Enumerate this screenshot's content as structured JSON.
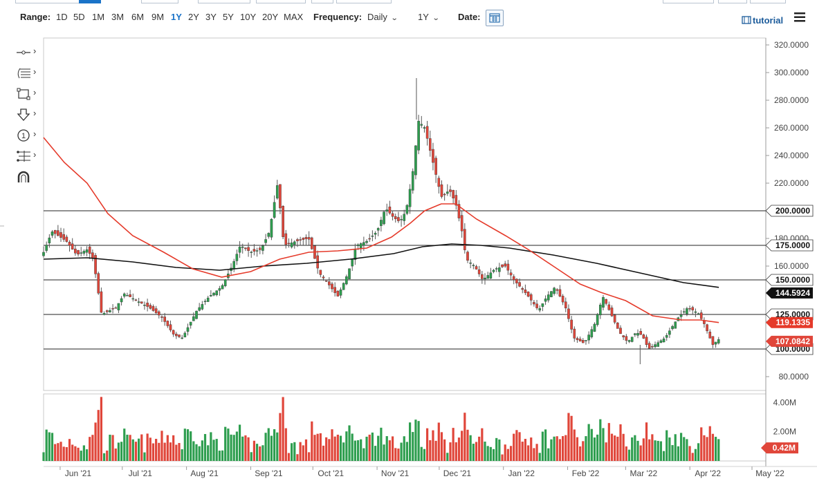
{
  "toolbar": {
    "range_label": "Range:",
    "ranges": [
      "1D",
      "5D",
      "1M",
      "3M",
      "6M",
      "9M",
      "1Y",
      "2Y",
      "3Y",
      "5Y",
      "10Y",
      "20Y",
      "MAX"
    ],
    "active_range": "1Y",
    "frequency_label": "Frequency:",
    "frequency_value": "Daily",
    "period_value": "1Y",
    "date_label": "Date:",
    "tutorial_label": "tutorial"
  },
  "colors": {
    "up": "#2e9e4f",
    "down": "#e0463a",
    "ma_fast": "#e53a2a",
    "ma_slow": "#111111",
    "hline": "#222222",
    "axis_active": "#1a73c8"
  },
  "icons": [
    "line-tool-icon",
    "fib-tool-icon",
    "rectangle-tool-icon",
    "arrow-tool-icon",
    "annotation-tool-icon",
    "measure-tool-icon",
    "magnet-icon",
    "calendar-icon",
    "film-icon",
    "hamburger-menu-icon"
  ],
  "chart_data": {
    "type": "candlestick",
    "x_ticks": [
      "Jun '21",
      "Jul '21",
      "Aug '21",
      "Sep '21",
      "Oct '21",
      "Nov '21",
      "Dec '21",
      "Jan '22",
      "Feb '22",
      "Mar '22",
      "Apr '22",
      "May '22"
    ],
    "y_ticks": [
      "80.0000",
      "100.0000",
      "120.0000",
      "140.0000",
      "160.0000",
      "180.0000",
      "200.0000",
      "220.0000",
      "240.0000",
      "260.0000",
      "280.0000",
      "300.0000",
      "320.0000"
    ],
    "ylim": [
      80,
      320
    ],
    "volume_ticks": [
      "4.00M",
      "2.00M"
    ],
    "volume_ylim": [
      0,
      4.4
    ],
    "horizontal_lines": [
      {
        "value": 200,
        "label": "200.0000"
      },
      {
        "value": 175,
        "label": "175.0000"
      },
      {
        "value": 150,
        "label": "150.0000"
      },
      {
        "value": 125,
        "label": "125.0000"
      },
      {
        "value": 100,
        "label": "100.0000"
      }
    ],
    "price_tags": [
      {
        "value": 144.5924,
        "label": "144.5924",
        "series": "ma_slow"
      },
      {
        "value": 119.1335,
        "label": "119.1335",
        "series": "ma_fast"
      },
      {
        "value": 107.0842,
        "label": "107.0842",
        "series": "last_price"
      },
      {
        "value": 0.42,
        "label": "0.42M",
        "series": "volume"
      }
    ],
    "close_path": [
      [
        "2021-05-24",
        170
      ],
      [
        "2021-05-28",
        185
      ],
      [
        "2021-06-04",
        178
      ],
      [
        "2021-06-09",
        168
      ],
      [
        "2021-06-14",
        172
      ],
      [
        "2021-06-17",
        165
      ],
      [
        "2021-06-21",
        125
      ],
      [
        "2021-06-28",
        130
      ],
      [
        "2021-07-02",
        140
      ],
      [
        "2021-07-08",
        135
      ],
      [
        "2021-07-14",
        130
      ],
      [
        "2021-07-20",
        123
      ],
      [
        "2021-07-26",
        110
      ],
      [
        "2021-07-30",
        108
      ],
      [
        "2021-08-06",
        128
      ],
      [
        "2021-08-12",
        138
      ],
      [
        "2021-08-18",
        145
      ],
      [
        "2021-08-23",
        160
      ],
      [
        "2021-08-27",
        175
      ],
      [
        "2021-09-01",
        170
      ],
      [
        "2021-09-06",
        172
      ],
      [
        "2021-09-10",
        185
      ],
      [
        "2021-09-14",
        220
      ],
      [
        "2021-09-17",
        175
      ],
      [
        "2021-09-23",
        178
      ],
      [
        "2021-09-29",
        180
      ],
      [
        "2021-10-04",
        155
      ],
      [
        "2021-10-08",
        148
      ],
      [
        "2021-10-13",
        138
      ],
      [
        "2021-10-18",
        155
      ],
      [
        "2021-10-22",
        175
      ],
      [
        "2021-10-27",
        178
      ],
      [
        "2021-11-01",
        185
      ],
      [
        "2021-11-05",
        202
      ],
      [
        "2021-11-09",
        195
      ],
      [
        "2021-11-12",
        192
      ],
      [
        "2021-11-15",
        200
      ],
      [
        "2021-11-18",
        225
      ],
      [
        "2021-11-21",
        265
      ],
      [
        "2021-11-24",
        260
      ],
      [
        "2021-11-28",
        235
      ],
      [
        "2021-12-02",
        210
      ],
      [
        "2021-12-06",
        215
      ],
      [
        "2021-12-09",
        205
      ],
      [
        "2021-12-12",
        185
      ],
      [
        "2021-12-14",
        165
      ],
      [
        "2021-12-18",
        160
      ],
      [
        "2021-12-22",
        150
      ],
      [
        "2021-12-28",
        158
      ],
      [
        "2022-01-02",
        160
      ],
      [
        "2022-01-06",
        150
      ],
      [
        "2022-01-12",
        140
      ],
      [
        "2022-01-18",
        128
      ],
      [
        "2022-01-22",
        138
      ],
      [
        "2022-01-26",
        145
      ],
      [
        "2022-01-31",
        130
      ],
      [
        "2022-02-04",
        108
      ],
      [
        "2022-02-09",
        104
      ],
      [
        "2022-02-14",
        118
      ],
      [
        "2022-02-18",
        138
      ],
      [
        "2022-02-22",
        125
      ],
      [
        "2022-02-26",
        112
      ],
      [
        "2022-03-02",
        105
      ],
      [
        "2022-03-06",
        112
      ],
      [
        "2022-03-09",
        110
      ],
      [
        "2022-03-12",
        100
      ],
      [
        "2022-03-16",
        104
      ],
      [
        "2022-03-20",
        108
      ],
      [
        "2022-03-26",
        122
      ],
      [
        "2022-03-31",
        130
      ],
      [
        "2022-04-05",
        126
      ],
      [
        "2022-04-08",
        118
      ],
      [
        "2022-04-12",
        103
      ],
      [
        "2022-04-15",
        107.08
      ]
    ],
    "ma_fast_path": [
      [
        "2021-05-24",
        253
      ],
      [
        "2021-06-03",
        235
      ],
      [
        "2021-06-14",
        220
      ],
      [
        "2021-06-24",
        198
      ],
      [
        "2021-07-06",
        182
      ],
      [
        "2021-07-21",
        170
      ],
      [
        "2021-08-04",
        158
      ],
      [
        "2021-08-18",
        152
      ],
      [
        "2021-09-01",
        156
      ],
      [
        "2021-09-15",
        165
      ],
      [
        "2021-09-29",
        170
      ],
      [
        "2021-10-13",
        171
      ],
      [
        "2021-10-27",
        173
      ],
      [
        "2021-11-08",
        181
      ],
      [
        "2021-11-17",
        191
      ],
      [
        "2021-11-24",
        200
      ],
      [
        "2021-12-02",
        205
      ],
      [
        "2021-12-09",
        205
      ],
      [
        "2021-12-19",
        194
      ],
      [
        "2022-01-02",
        182
      ],
      [
        "2022-01-13",
        172
      ],
      [
        "2022-01-25",
        160
      ],
      [
        "2022-02-07",
        147
      ],
      [
        "2022-02-17",
        141
      ],
      [
        "2022-03-01",
        135
      ],
      [
        "2022-03-14",
        124
      ],
      [
        "2022-03-28",
        121
      ],
      [
        "2022-04-06",
        121
      ],
      [
        "2022-04-15",
        119.13
      ]
    ],
    "ma_slow_path": [
      [
        "2021-05-24",
        165
      ],
      [
        "2021-06-14",
        166
      ],
      [
        "2021-07-06",
        163
      ],
      [
        "2021-07-27",
        159
      ],
      [
        "2021-08-17",
        157
      ],
      [
        "2021-09-07",
        160
      ],
      [
        "2021-09-28",
        162
      ],
      [
        "2021-10-19",
        165
      ],
      [
        "2021-11-09",
        169
      ],
      [
        "2021-11-23",
        174
      ],
      [
        "2021-12-07",
        176
      ],
      [
        "2021-12-21",
        175
      ],
      [
        "2022-01-04",
        173
      ],
      [
        "2022-01-25",
        168
      ],
      [
        "2022-02-15",
        162
      ],
      [
        "2022-03-08",
        155
      ],
      [
        "2022-03-29",
        148
      ],
      [
        "2022-04-15",
        144.59
      ]
    ],
    "extremes": [
      {
        "date": "2021-11-20",
        "high": 296
      },
      {
        "date": "2022-03-08",
        "low": 89
      }
    ]
  }
}
